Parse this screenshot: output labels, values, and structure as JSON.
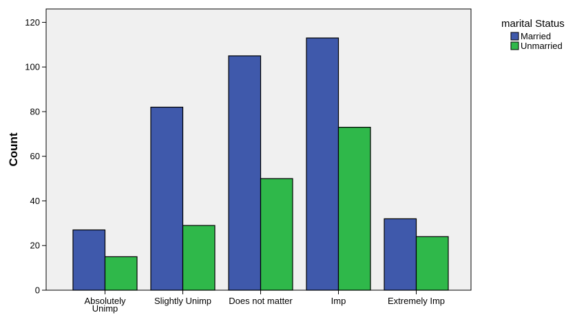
{
  "chart_data": {
    "type": "bar",
    "categories": [
      [
        "Absolutely",
        "Unimp"
      ],
      [
        "Slightly Unimp"
      ],
      [
        "Does not matter"
      ],
      [
        "Imp"
      ],
      [
        "Extremely Imp"
      ]
    ],
    "series": [
      {
        "name": "Married",
        "values": [
          27,
          82,
          105,
          113,
          32
        ],
        "color": "#3f59ab"
      },
      {
        "name": "Unmarried",
        "values": [
          15,
          29,
          50,
          73,
          24
        ],
        "color": "#2fb84a"
      }
    ],
    "ylabel": "Count",
    "xlabel": "",
    "ylim": [
      0,
      126
    ],
    "yticks": [
      0,
      20,
      40,
      60,
      80,
      100,
      120
    ],
    "legend_title": "marital Status",
    "legend_position": "top-right",
    "plot_background": "#f0f0f0",
    "grid": false
  }
}
